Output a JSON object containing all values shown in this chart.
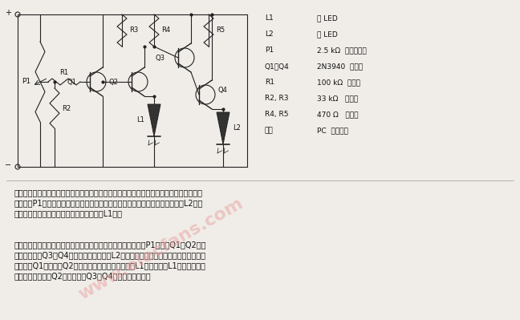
{
  "bg_color": "#f0ede8",
  "watermark_text": "www.elecfans.com",
  "watermark_color": "#e8a0a0",
  "watermark_alpha": 0.5,
  "parts_list_col1": [
    "L1",
    "L2",
    "P1",
    "Q1～Q4",
    "R1",
    "R2, R3",
    "R4, R5",
    "其他"
  ],
  "parts_list_col2": [
    "红 LED",
    "绿 LED",
    "2.5 kΩ  微调电阱器",
    "2N3940  晶体管",
    "100 kΩ  电阱器",
    "33 kΩ   电阱器",
    "470 Ω   电阱器",
    "PC  板，线缆"
  ],
  "desc_para1": "该监视器是一个简单的电压比较器，其中汽车电池用作工作电源。该比较器的输入电压由可调电位器P1设定，其调定値必须满足：当交流发电机正常工作时绻色发光二极管L2亮；当交流发电机工作不正常时红色发光二极管L1亮。",
  "desc_para2": "电路的工作原理如下：当发电机正常工作时，电池电压高，并且P1调定到Q1使Q2截止的状态，结果Q3和Q4充分导通，于是绻灯L2点亮。如果电池电压低（发电机工作不正常），则Q1截止，使Q2充分导通，向红色发光二极管L1提供电流，L1点亮，指示出有故障情况。一旦Q2导通，就使Q3和Q4处于不工作状态。"
}
